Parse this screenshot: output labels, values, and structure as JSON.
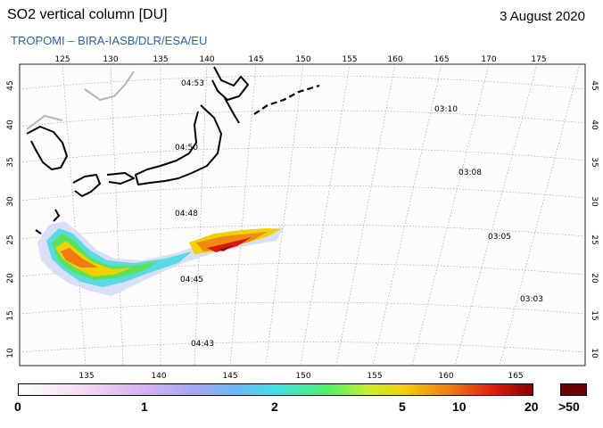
{
  "header": {
    "title": "SO2 vertical column [DU]",
    "date": "3 August 2020",
    "source": "TROPOMI  –  BIRA-IASB/DLR/ESA/EU"
  },
  "map": {
    "top_lon_labels": [
      "125",
      "130",
      "135",
      "140",
      "145",
      "150",
      "155",
      "160",
      "165",
      "170",
      "175"
    ],
    "bottom_lon_labels": [
      "135",
      "140",
      "145",
      "150",
      "155",
      "160",
      "165"
    ],
    "lat_labels": [
      "45",
      "40",
      "35",
      "30",
      "25",
      "20",
      "15",
      "10"
    ],
    "overpass_times": [
      "04:53",
      "04:50",
      "04:48",
      "04:45",
      "04:43",
      "03:10",
      "03:08",
      "03:05",
      "03:03"
    ]
  },
  "colorbar": {
    "labels": [
      "0",
      "1",
      "2",
      "5",
      "10",
      "20"
    ],
    "max_label": ">50"
  }
}
